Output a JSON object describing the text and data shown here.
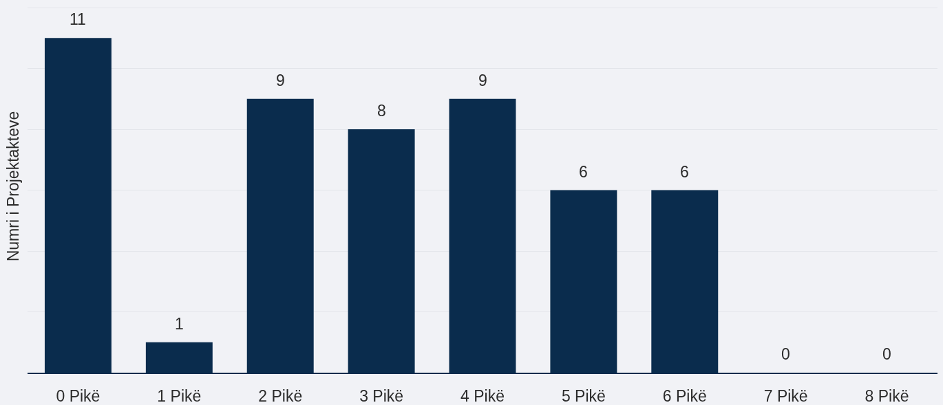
{
  "chart_data": {
    "type": "bar",
    "ylabel": "Numri i Projektakteve",
    "categories": [
      "0 Pikë",
      "1 Pikë",
      "2 Pikë",
      "3 Pikë",
      "4 Pikë",
      "5 Pikë",
      "6 Pikë",
      "7 Pikë",
      "8 Pikë"
    ],
    "values": [
      11,
      1,
      9,
      8,
      9,
      6,
      6,
      0,
      0
    ],
    "color": "#0a2c4d",
    "ylim": [
      0,
      12.25
    ],
    "yticks": [
      {
        "value": 0,
        "label": null
      },
      {
        "value": 2,
        "label": null
      },
      {
        "value": 4,
        "label": null
      },
      {
        "value": 6,
        "label": null
      },
      {
        "value": 8,
        "label": null
      },
      {
        "value": 10,
        "label": null
      },
      {
        "value": 12,
        "label": null
      }
    ],
    "tick_labels": "x",
    "grid": "y",
    "data_labels": true
  }
}
